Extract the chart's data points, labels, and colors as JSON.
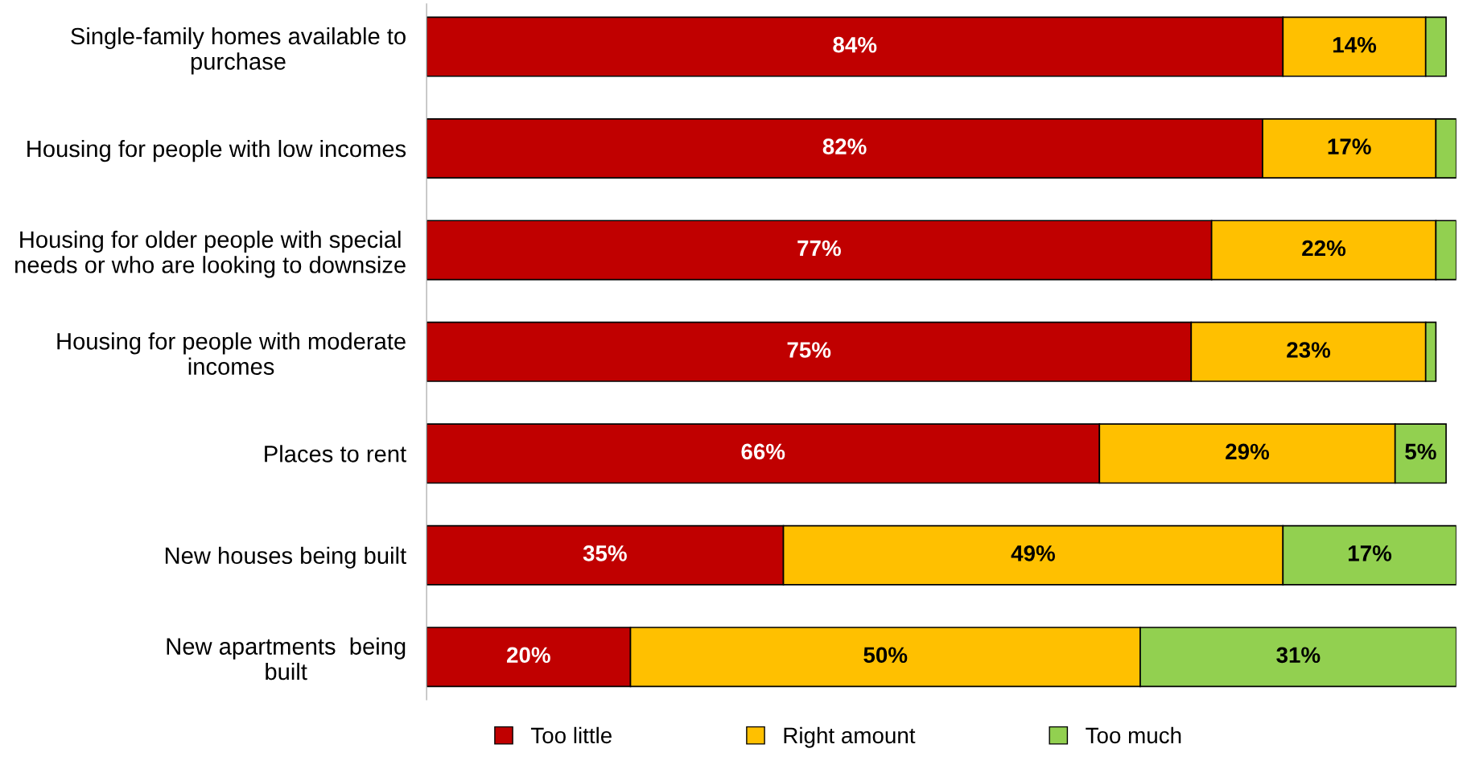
{
  "chart_data": {
    "type": "bar",
    "orientation": "horizontal",
    "stacked": true,
    "categories": [
      "Single-family homes available to\npurchase",
      "Housing for people with low incomes",
      "Housing for older people with special\nneeds or who are looking to downsize",
      "Housing for people with moderate\nincomes",
      "Places to rent",
      "New houses being built",
      "New apartments  being\nbuilt"
    ],
    "series": [
      {
        "name": "Too little",
        "color": "#c00000",
        "values": [
          84,
          82,
          77,
          75,
          66,
          35,
          20
        ],
        "value_labels": [
          "84%",
          "82%",
          "77%",
          "75%",
          "66%",
          "35%",
          "20%"
        ]
      },
      {
        "name": "Right amount",
        "color": "#ffc000",
        "values": [
          14,
          17,
          22,
          23,
          29,
          49,
          50
        ],
        "value_labels": [
          "14%",
          "17%",
          "22%",
          "23%",
          "29%",
          "49%",
          "50%"
        ]
      },
      {
        "name": "Too much",
        "color": "#92d050",
        "values": [
          2,
          2,
          2,
          1,
          5,
          17,
          31
        ],
        "value_labels": [
          null,
          null,
          null,
          null,
          "5%",
          "17%",
          "31%"
        ]
      }
    ],
    "legend": "bottom",
    "grid": false,
    "tick_labels": "y"
  }
}
